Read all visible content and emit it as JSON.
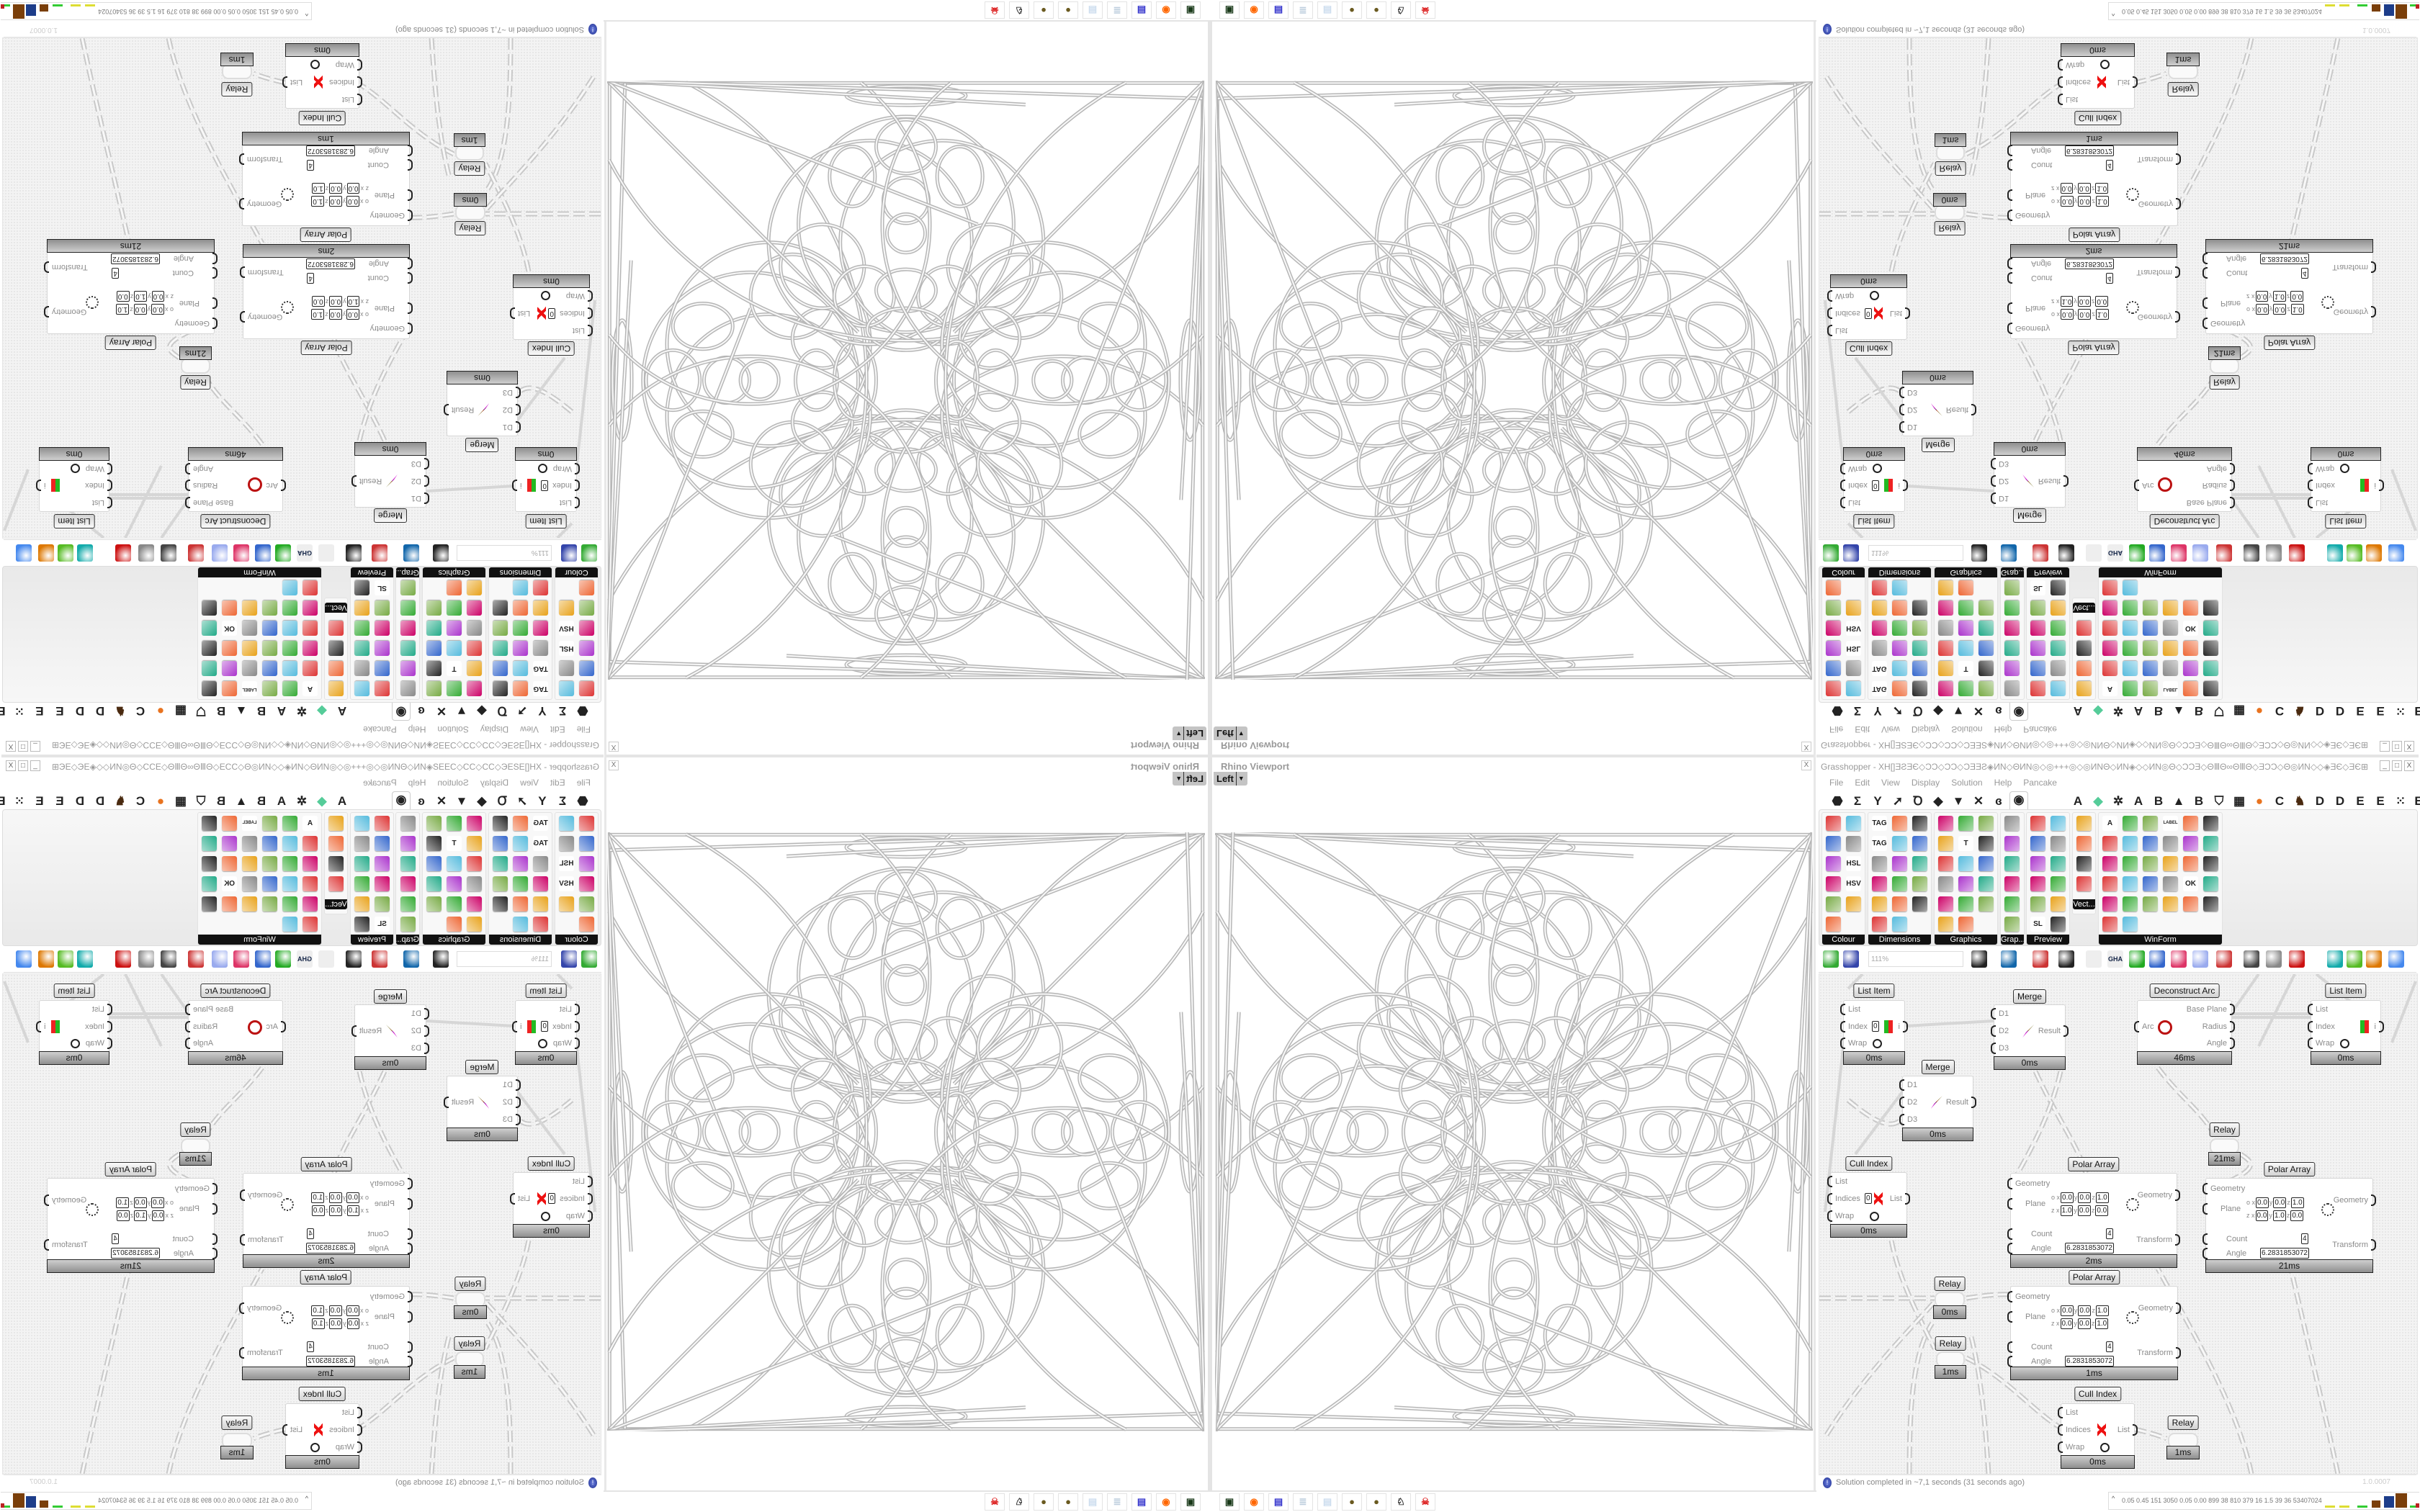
{
  "rhino": {
    "title": "Rhino Viewport",
    "view": "Left",
    "close": "X"
  },
  "grasshopper": {
    "title": "Grasshopper - ХН[]ƎƧƎЄ◇ƆƆ◇ƆƆ◇ƆƎƎƧ◈ИΝ◇ΘИΝ◎◇◎+++◎◇◎ИΝΘ◇ИΝ◈◇◇ИΝ◎Θ◇ƆƆƎ◇ΘⅢΘ∞ΘⅢΘ◇ƎƆƆ◇Θ◎ИΝ◇◇◈ƎЄ◇ƎЄ⊞◇ƧƧ◇⊞ƎЄ◇ƎЄ◈◇◇◇ƆƎЄ⊞◇◇ƆƆ...",
    "window_buttons": [
      "_",
      "□",
      "X"
    ],
    "menu": [
      "File",
      "Edit",
      "View",
      "Display",
      "Solution",
      "Help",
      "Pancake"
    ],
    "tabs": [
      {
        "icon": "params-hex-icon",
        "glyph": "⬣"
      },
      {
        "icon": "maths-sigma-icon",
        "glyph": "Σ"
      },
      {
        "icon": "sets-icon",
        "glyph": "Y"
      },
      {
        "icon": "vector-arrow-icon",
        "glyph": "➚"
      },
      {
        "icon": "curve-icon",
        "glyph": "Ꝺ"
      },
      {
        "icon": "surface-icon",
        "glyph": "◆"
      },
      {
        "icon": "mesh-icon",
        "glyph": "▼"
      },
      {
        "icon": "intersect-icon",
        "glyph": "✕"
      },
      {
        "icon": "transform-icon",
        "glyph": "ɞ"
      },
      {
        "icon": "display-eye-icon",
        "glyph": "◉"
      },
      {
        "icon": "plugin-a-icon",
        "glyph": "A"
      },
      {
        "icon": "crystal-icon",
        "glyph": "◆"
      },
      {
        "icon": "gear-icon",
        "glyph": "✲"
      },
      {
        "icon": "plugin-a2-icon",
        "glyph": "A"
      },
      {
        "icon": "plugin-b-icon",
        "glyph": "B"
      },
      {
        "icon": "mountain-icon",
        "glyph": "▲"
      },
      {
        "icon": "plugin-b2-icon",
        "glyph": "B"
      },
      {
        "icon": "shield-icon",
        "glyph": "⛉"
      },
      {
        "icon": "grid-icon",
        "glyph": "▦"
      },
      {
        "icon": "orange-circle-icon",
        "glyph": "●"
      },
      {
        "icon": "plugin-c-icon",
        "glyph": "C"
      },
      {
        "icon": "rooster-icon",
        "glyph": "♞"
      },
      {
        "icon": "plugin-d-icon",
        "glyph": "D"
      },
      {
        "icon": "plugin-d2-icon",
        "glyph": "D"
      },
      {
        "icon": "plugin-e-icon",
        "glyph": "E"
      },
      {
        "icon": "plugin-e2-icon",
        "glyph": "E"
      },
      {
        "icon": "dotted-grid-icon",
        "glyph": "⁙"
      },
      {
        "icon": "plugin-e3-icon",
        "glyph": "E"
      }
    ],
    "panels": [
      {
        "label": "Colour",
        "icons": [
          "colour-wheel",
          "gradient",
          "rgb-cube",
          "hue-triangle",
          "cube-colour",
          "HSL",
          "red-sphere",
          "HSV",
          "red-gem",
          "spectrum",
          "swatch"
        ]
      },
      {
        "label": "Dimensions",
        "icons": [
          "TAG",
          "dim-linear",
          "dim-angle",
          "TAG",
          "dim-line",
          "dim-box",
          "swatch-pink",
          "dim-ordinate",
          "dim-arrow",
          "hatch",
          "dim-angular",
          "dim-radius",
          "dim-arc",
          "dim-path",
          "dim-leader",
          "dim-diag",
          "dim-triangle"
        ]
      },
      {
        "label": "Graphics",
        "icons": [
          "circle",
          "T-circle",
          "eye",
          "dots",
          "T",
          "square-circle",
          "blur",
          "list",
          "asterisk",
          "ring",
          "link",
          "save",
          "sphere",
          "dot-ring",
          "save-star",
          "gradient-sphere",
          "photo"
        ]
      },
      {
        "label": "Grap...",
        "icons": [
          "histogram",
          "legend",
          "pie",
          "line-graph",
          "layers",
          "area-graph"
        ]
      },
      {
        "label": "Preview",
        "icons": [
          "egg",
          "camera",
          "sphere-cam",
          "landscape",
          "blobs",
          "heart-mesh",
          "red-blobs",
          "heart-green",
          "square-grad",
          "hearts",
          "SL",
          "tree"
        ]
      },
      {
        "label": "Vect...",
        "icons": [
          "numbers",
          "route",
          "arrows-red",
          "arrows-green"
        ]
      },
      {
        "label": "WinForm",
        "icons": [
          "A",
          "list-form",
          "lines",
          "LABEL",
          "graph",
          "keypad",
          "hatched",
          "slider",
          "range",
          "grid-form",
          "pacman",
          "window",
          "check",
          "text",
          "picture",
          "pie-form",
          "split",
          "stripes",
          "number",
          "cubes",
          "arrow-bar",
          "text-plus",
          "OK",
          "toggle",
          "bar",
          "list2",
          "form",
          "calendar",
          "v-slider",
          "progress",
          "bar-chart",
          "arrow-right"
        ]
      }
    ],
    "toolbar": {
      "zoom": "111%",
      "icons": [
        "new-file",
        "save-file",
        "zoom-extents",
        "preview-eye",
        "sketch-pen",
        "bug",
        "at-sign",
        "GHA",
        "canvas-shot",
        "search",
        "package",
        "bulb",
        "wires-cross",
        "bottle",
        "gear-hollow",
        "red-solid",
        "shaded-teal",
        "shaded-green",
        "shaded-orange",
        "blue-sphere"
      ]
    },
    "components": [
      {
        "name": "List Item",
        "inputs": [
          "List",
          "Index",
          "Wrap"
        ],
        "outputs": [
          "i"
        ],
        "index_value": "0",
        "time": "0ms"
      },
      {
        "name": "Merge",
        "inputs": [
          "D1",
          "D2",
          "D3"
        ],
        "outputs": [
          "Result"
        ],
        "time": "0ms"
      },
      {
        "name": "Deconstruct Arc",
        "inputs": [
          "Arc"
        ],
        "outputs": [
          "Base Plane",
          "Radius",
          "Angle"
        ],
        "time": "46ms"
      },
      {
        "name": "List Item",
        "inputs": [
          "List",
          "Index",
          "Wrap"
        ],
        "outputs": [
          "i"
        ],
        "time": "0ms"
      },
      {
        "name": "Merge",
        "inputs": [
          "D1",
          "D2",
          "D3"
        ],
        "outputs": [
          "Result"
        ],
        "time": "0ms"
      },
      {
        "name": "Relay",
        "time": "21ms"
      },
      {
        "name": "Cull Index",
        "inputs": [
          "List",
          "Indices",
          "Wrap"
        ],
        "outputs": [
          "List"
        ],
        "index_value": "0",
        "time": "0ms"
      },
      {
        "name": "Polar Array",
        "inputs": [
          "Geometry",
          "Plane",
          "Count",
          "Angle"
        ],
        "outputs": [
          "Geometry",
          "Transform"
        ],
        "plane_o": [
          "0.0",
          "0.0",
          "1.0"
        ],
        "plane_z": [
          "1.0",
          "0.0",
          "0.0"
        ],
        "count": "4",
        "angle": "6.2831853072",
        "time": "2ms"
      },
      {
        "name": "Polar Array",
        "inputs": [
          "Geometry",
          "Plane",
          "Count",
          "Angle"
        ],
        "outputs": [
          "Geometry",
          "Transform"
        ],
        "plane_o": [
          "0.0",
          "0.0",
          "1.0"
        ],
        "plane_z": [
          "0.0",
          "1.0",
          "0.0"
        ],
        "count": "4",
        "angle": "6.2831853072",
        "time": "21ms"
      },
      {
        "name": "Polar Array",
        "inputs": [
          "Geometry",
          "Plane",
          "Count",
          "Angle"
        ],
        "outputs": [
          "Geometry",
          "Transform"
        ],
        "plane_o": [
          "0.0",
          "0.0",
          "1.0"
        ],
        "plane_z": [
          "0.0",
          "0.0",
          "1.0"
        ],
        "count": "4",
        "angle": "6.2831853072",
        "time": "1ms"
      },
      {
        "name": "Relay",
        "time": "0ms"
      },
      {
        "name": "Relay",
        "time": "1ms"
      },
      {
        "name": "Cull Index",
        "inputs": [
          "List",
          "Indices",
          "Wrap"
        ],
        "outputs": [
          "List"
        ],
        "time": "0ms"
      },
      {
        "name": "Relay",
        "time": "1ms"
      }
    ],
    "status": "Solution completed in ~7,1 seconds (31 seconds ago)",
    "version": "1.0.0007"
  },
  "stats": {
    "caret": "^",
    "values": "0.05 0.45 151 3050 0.05 0.00 899 38 810 379 16 1.5 39 36 53407024"
  },
  "taskbar": [
    "terminal-green-icon",
    "firefox-icon",
    "floppy-64-icon",
    "script-scroll-icon",
    "notepad-icon",
    "gold-coin-icon",
    "gold-coin-icon",
    "wolf-icon",
    "red-skull-icon"
  ],
  "colors": {
    "accent_status": "#1c2c8c",
    "panel_label_bg": "#111111",
    "canvas_bg": "#f3f3f3",
    "geometry": "#b8b8b8"
  }
}
